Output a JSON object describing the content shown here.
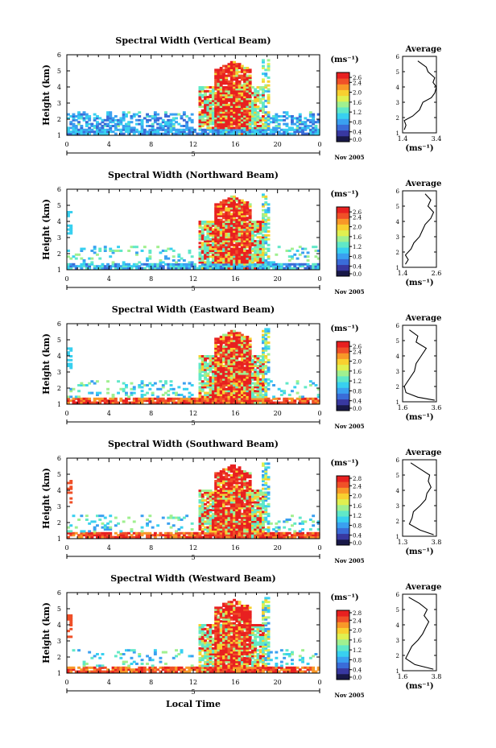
{
  "figure": {
    "footer_label": "Local Time",
    "day_label": "5",
    "month_label": "Nov 2005"
  },
  "colorbar": {
    "unit": "(ms⁻¹)",
    "colors": [
      "#181848",
      "#3838a0",
      "#3a6cd8",
      "#3aa0f0",
      "#38d0f0",
      "#60e8c8",
      "#a0f090",
      "#e0f050",
      "#f8d030",
      "#f89828",
      "#f05028",
      "#e82020"
    ]
  },
  "chart_data": [
    {
      "type": "heatmap",
      "title": "Spectral Width (Vertical Beam)",
      "xlabel": "",
      "ylabel": "Height (km)",
      "xticks": [
        "0",
        "4",
        "8",
        "12",
        "16",
        "20",
        "0"
      ],
      "yticks": [
        "1",
        "2",
        "3",
        "4",
        "5",
        "6"
      ],
      "xlim": [
        0,
        24
      ],
      "ylim": [
        1,
        6
      ],
      "colorbar_ticks": [
        "2.6",
        "2.4",
        "2.0",
        "1.6",
        "1.2",
        "0.8",
        "0.4",
        "0.0"
      ],
      "colorbar_range": [
        0.0,
        2.8
      ],
      "profile": {
        "title": "Average",
        "xlabel": "(ms⁻¹)",
        "xticks": [
          "1.4",
          "3.4"
        ],
        "xlim": [
          1.4,
          3.4
        ],
        "height": [
          1.2,
          1.5,
          1.8,
          2.1,
          2.5,
          3.0,
          3.3,
          3.6,
          4.0,
          4.3,
          4.6,
          5.0,
          5.3,
          5.7
        ],
        "value": [
          1.5,
          1.6,
          1.5,
          2.0,
          2.4,
          2.6,
          3.1,
          3.3,
          3.4,
          3.2,
          3.3,
          2.9,
          2.8,
          2.3
        ]
      }
    },
    {
      "type": "heatmap",
      "title": "Spectral Width (Northward Beam)",
      "xlabel": "",
      "ylabel": "Height (km)",
      "xticks": [
        "0",
        "4",
        "8",
        "12",
        "16",
        "20",
        "0"
      ],
      "yticks": [
        "1",
        "2",
        "3",
        "4",
        "5",
        "6"
      ],
      "xlim": [
        0,
        24
      ],
      "ylim": [
        1,
        6
      ],
      "colorbar_ticks": [
        "2.6",
        "2.4",
        "2.0",
        "1.6",
        "1.2",
        "0.8",
        "0.4",
        "0.0"
      ],
      "colorbar_range": [
        0.0,
        2.8
      ],
      "profile": {
        "title": "Average",
        "xlabel": "(ms⁻¹)",
        "xticks": [
          "1.4",
          "2.6"
        ],
        "xlim": [
          1.4,
          2.6
        ],
        "height": [
          1.2,
          1.5,
          1.8,
          2.2,
          2.6,
          3.0,
          3.4,
          3.8,
          4.2,
          4.6,
          5.0,
          5.4,
          5.8
        ],
        "value": [
          1.5,
          1.6,
          1.5,
          1.7,
          1.8,
          2.0,
          2.1,
          2.2,
          2.4,
          2.5,
          2.3,
          2.4,
          2.2
        ]
      }
    },
    {
      "type": "heatmap",
      "title": "Spectral Width (Eastward Beam)",
      "xlabel": "",
      "ylabel": "Height (km)",
      "xticks": [
        "0",
        "4",
        "8",
        "12",
        "16",
        "20",
        "0"
      ],
      "yticks": [
        "1",
        "2",
        "3",
        "4",
        "5",
        "6"
      ],
      "xlim": [
        0,
        24
      ],
      "ylim": [
        1,
        6
      ],
      "colorbar_ticks": [
        "2.6",
        "2.4",
        "2.0",
        "1.6",
        "1.2",
        "0.8",
        "0.4",
        "0.0"
      ],
      "colorbar_range": [
        0.0,
        2.8
      ],
      "profile": {
        "title": "Average",
        "xlabel": "(ms⁻¹)",
        "xticks": [
          "1.6",
          "3.6"
        ],
        "xlim": [
          1.6,
          3.6
        ],
        "height": [
          1.1,
          1.3,
          1.6,
          2.0,
          2.5,
          3.0,
          3.5,
          4.0,
          4.5,
          4.9,
          5.3,
          5.7
        ],
        "value": [
          3.5,
          2.5,
          1.8,
          1.7,
          2.0,
          2.3,
          2.4,
          2.7,
          3.0,
          2.4,
          2.5,
          2.0
        ]
      }
    },
    {
      "type": "heatmap",
      "title": "Spectral Width (Southward Beam)",
      "xlabel": "",
      "ylabel": "Height (km)",
      "xticks": [
        "0",
        "4",
        "8",
        "12",
        "16",
        "20",
        "0"
      ],
      "yticks": [
        "1",
        "2",
        "3",
        "4",
        "5",
        "6"
      ],
      "xlim": [
        0,
        24
      ],
      "ylim": [
        1,
        6
      ],
      "colorbar_ticks": [
        "2.8",
        "2.4",
        "2.0",
        "1.6",
        "1.2",
        "0.8",
        "0.4",
        "0.0"
      ],
      "colorbar_range": [
        0.0,
        2.8
      ],
      "profile": {
        "title": "Average",
        "xlabel": "(ms⁻¹)",
        "xticks": [
          "1.3",
          "3.8"
        ],
        "xlim": [
          1.3,
          3.8
        ],
        "height": [
          1.1,
          1.4,
          1.8,
          2.2,
          2.6,
          3.0,
          3.4,
          3.8,
          4.2,
          4.6,
          5.0,
          5.4,
          5.8
        ],
        "value": [
          3.6,
          2.6,
          1.8,
          2.0,
          2.1,
          2.6,
          3.0,
          3.1,
          3.4,
          3.2,
          3.3,
          2.6,
          1.9
        ]
      }
    },
    {
      "type": "heatmap",
      "title": "Spectral Width (Westward Beam)",
      "xlabel": "Local Time",
      "ylabel": "Height (km)",
      "xticks": [
        "0",
        "4",
        "8",
        "12",
        "16",
        "20",
        "0"
      ],
      "yticks": [
        "1",
        "2",
        "3",
        "4",
        "5",
        "6"
      ],
      "xlim": [
        0,
        24
      ],
      "ylim": [
        1,
        6
      ],
      "colorbar_ticks": [
        "2.8",
        "2.4",
        "2.0",
        "1.6",
        "1.2",
        "0.8",
        "0.4",
        "0.0"
      ],
      "colorbar_range": [
        0.0,
        2.8
      ],
      "profile": {
        "title": "Average",
        "xlabel": "(ms⁻¹)",
        "xticks": [
          "1.6",
          "3.8"
        ],
        "xlim": [
          1.6,
          3.8
        ],
        "height": [
          1.1,
          1.4,
          1.8,
          2.2,
          2.6,
          3.0,
          3.4,
          3.8,
          4.2,
          4.6,
          5.0,
          5.4,
          5.8
        ],
        "value": [
          3.6,
          2.4,
          1.8,
          2.0,
          2.2,
          2.6,
          2.9,
          3.1,
          3.3,
          3.0,
          3.2,
          2.7,
          2.0
        ]
      }
    }
  ]
}
